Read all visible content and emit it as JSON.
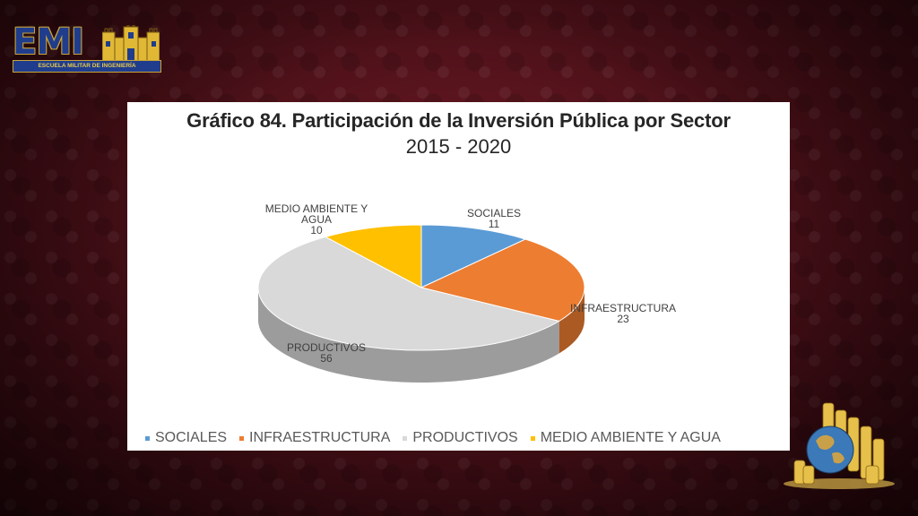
{
  "logo": {
    "text": "EMI",
    "subtitle": "ESCUELA MILITAR DE INGENIERÍA"
  },
  "chart_data": {
    "type": "pie",
    "title": "Gráfico 84. Participación de la Inversión Pública por Sector",
    "subtitle": "2015 - 2020",
    "categories": [
      "SOCIALES",
      "INFRAESTRUCTURA",
      "PRODUCTIVOS",
      "MEDIO AMBIENTE Y AGUA"
    ],
    "values": [
      11,
      23,
      56,
      10
    ],
    "data_labels": [
      {
        "name_line1": "SOCIALES",
        "name_line2": "",
        "value": "11"
      },
      {
        "name_line1": "INFRAESTRUCTURA",
        "name_line2": "",
        "value": "23"
      },
      {
        "name_line1": "PRODUCTIVOS",
        "name_line2": "",
        "value": "56"
      },
      {
        "name_line1": "MEDIO AMBIENTE Y",
        "name_line2": "AGUA",
        "value": "10"
      }
    ],
    "colors": [
      "#5b9bd5",
      "#ed7d31",
      "#d9d9d9",
      "#ffc000"
    ],
    "legend_position": "bottom",
    "style": "3d-pie"
  }
}
